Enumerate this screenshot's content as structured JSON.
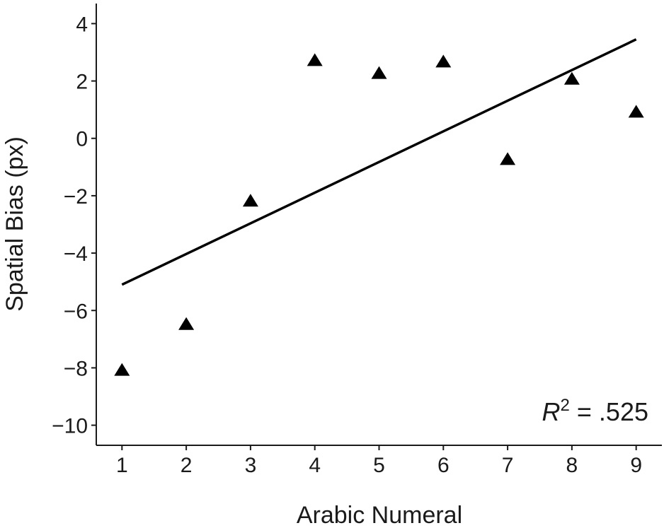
{
  "chart_data": {
    "type": "scatter",
    "title": "",
    "xlabel": "Arabic Numeral",
    "ylabel": "Spatial Bias (px)",
    "x": [
      1,
      2,
      3,
      4,
      5,
      6,
      7,
      8,
      9
    ],
    "y": [
      -8.1,
      -6.5,
      -2.2,
      2.7,
      2.25,
      2.65,
      -0.75,
      2.05,
      0.9
    ],
    "xlim": [
      0.6,
      9.4
    ],
    "ylim": [
      -10.7,
      4.7
    ],
    "xticks": [
      1,
      2,
      3,
      4,
      5,
      6,
      7,
      8,
      9
    ],
    "yticks": [
      -10,
      -8,
      -6,
      -4,
      -2,
      0,
      2,
      4
    ],
    "marker": "triangle",
    "marker_color": "#000000",
    "grid": false,
    "legend": "none",
    "fit_line": {
      "x": [
        1,
        9
      ],
      "y": [
        -5.1,
        3.45
      ]
    },
    "annotation": {
      "r_symbol": "R",
      "r_exponent": "2",
      "r_value": " = .525",
      "placement": "bottom-right"
    }
  }
}
